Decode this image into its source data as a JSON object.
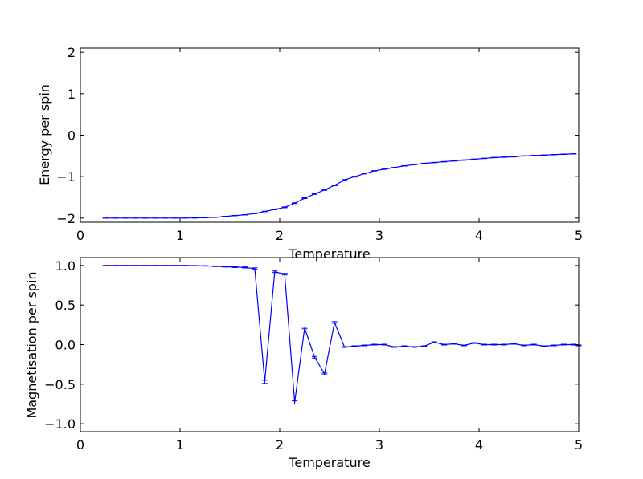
{
  "chart_data": [
    {
      "type": "line",
      "title": "",
      "xlabel": "Temperature",
      "ylabel": "Energy per spin",
      "xlim": [
        0,
        5
      ],
      "ylim": [
        -2.1,
        2.1
      ],
      "xticks": [
        0,
        1,
        2,
        3,
        4,
        5
      ],
      "xtick_labels": [
        "0",
        "1",
        "2",
        "3",
        "4",
        "5"
      ],
      "yticks": [
        -2,
        -1,
        0,
        1,
        2
      ],
      "ytick_labels": [
        "−2",
        "−1",
        "0",
        "1",
        "2"
      ],
      "grid": false,
      "line_color": "#0000ff",
      "error_bars": true,
      "x": [
        0.25,
        0.35,
        0.45,
        0.55,
        0.65,
        0.75,
        0.85,
        0.95,
        1.05,
        1.15,
        1.25,
        1.35,
        1.45,
        1.55,
        1.65,
        1.75,
        1.85,
        1.95,
        2.05,
        2.15,
        2.25,
        2.35,
        2.45,
        2.55,
        2.65,
        2.75,
        2.85,
        2.95,
        3.05,
        3.15,
        3.25,
        3.35,
        3.45,
        3.55,
        3.65,
        3.75,
        3.85,
        3.95,
        4.05,
        4.15,
        4.25,
        4.35,
        4.45,
        4.55,
        4.65,
        4.75,
        4.85,
        4.95
      ],
      "y": [
        -2.0,
        -2.0,
        -2.0,
        -2.0,
        -2.0,
        -2.0,
        -2.0,
        -2.0,
        -2.0,
        -1.995,
        -1.99,
        -1.98,
        -1.96,
        -1.94,
        -1.92,
        -1.89,
        -1.84,
        -1.79,
        -1.74,
        -1.64,
        -1.52,
        -1.42,
        -1.32,
        -1.21,
        -1.08,
        -1.0,
        -0.93,
        -0.86,
        -0.82,
        -0.78,
        -0.74,
        -0.71,
        -0.68,
        -0.66,
        -0.64,
        -0.62,
        -0.6,
        -0.58,
        -0.56,
        -0.54,
        -0.53,
        -0.52,
        -0.5,
        -0.49,
        -0.48,
        -0.47,
        -0.46,
        -0.45
      ],
      "yerr": [
        0.0,
        0.0,
        0.0,
        0.0,
        0.0,
        0.0,
        0.0,
        0.0,
        0.0,
        0.005,
        0.005,
        0.005,
        0.005,
        0.005,
        0.005,
        0.005,
        0.005,
        0.01,
        0.01,
        0.01,
        0.01,
        0.01,
        0.01,
        0.01,
        0.01,
        0.01,
        0.005,
        0.005,
        0.005,
        0.005,
        0.005,
        0.005,
        0.005,
        0.005,
        0.005,
        0.005,
        0.005,
        0.005,
        0.005,
        0.005,
        0.005,
        0.005,
        0.005,
        0.005,
        0.005,
        0.005,
        0.005,
        0.005
      ]
    },
    {
      "type": "line",
      "title": "",
      "xlabel": "Temperature",
      "ylabel": "Magnetisation per spin",
      "xlim": [
        0,
        5
      ],
      "ylim": [
        -1.1,
        1.1
      ],
      "xticks": [
        0,
        1,
        2,
        3,
        4,
        5
      ],
      "xtick_labels": [
        "0",
        "1",
        "2",
        "3",
        "4",
        "5"
      ],
      "yticks": [
        -1.0,
        -0.5,
        0.0,
        0.5,
        1.0
      ],
      "ytick_labels": [
        "−1.0",
        "−0.5",
        "0.0",
        "0.5",
        "1.0"
      ],
      "grid": false,
      "line_color": "#0000ff",
      "error_bars": true,
      "x": [
        0.25,
        0.35,
        0.45,
        0.55,
        0.65,
        0.75,
        0.85,
        0.95,
        1.05,
        1.15,
        1.25,
        1.35,
        1.45,
        1.55,
        1.65,
        1.75,
        1.85,
        1.95,
        2.05,
        2.15,
        2.25,
        2.35,
        2.45,
        2.55,
        2.65,
        2.75,
        2.85,
        2.95,
        3.05,
        3.15,
        3.25,
        3.35,
        3.45,
        3.55,
        3.65,
        3.75,
        3.85,
        3.95,
        4.05,
        4.15,
        4.25,
        4.35,
        4.45,
        4.55,
        4.65,
        4.75,
        4.85,
        4.95,
        5.0
      ],
      "y": [
        1.0,
        1.0,
        1.0,
        1.0,
        1.0,
        1.0,
        1.0,
        1.0,
        1.0,
        0.998,
        0.995,
        0.99,
        0.985,
        0.98,
        0.975,
        0.96,
        -0.47,
        0.92,
        0.89,
        -0.73,
        0.21,
        -0.16,
        -0.37,
        0.28,
        -0.03,
        -0.02,
        -0.01,
        0.0,
        0.0,
        -0.03,
        -0.02,
        -0.03,
        -0.02,
        0.03,
        0.0,
        0.01,
        -0.01,
        0.02,
        0.0,
        0.0,
        0.0,
        0.01,
        -0.01,
        0.0,
        -0.02,
        -0.01,
        0.0,
        0.0,
        -0.01
      ],
      "yerr": [
        0.0,
        0.0,
        0.0,
        0.0,
        0.0,
        0.0,
        0.0,
        0.0,
        0.0,
        0.002,
        0.003,
        0.004,
        0.005,
        0.006,
        0.007,
        0.01,
        0.02,
        0.01,
        0.01,
        0.02,
        0.01,
        0.01,
        0.01,
        0.01,
        0.005,
        0.005,
        0.005,
        0.005,
        0.005,
        0.005,
        0.005,
        0.005,
        0.005,
        0.005,
        0.005,
        0.005,
        0.005,
        0.005,
        0.005,
        0.005,
        0.005,
        0.005,
        0.005,
        0.005,
        0.005,
        0.005,
        0.005,
        0.005,
        0.005
      ]
    }
  ]
}
